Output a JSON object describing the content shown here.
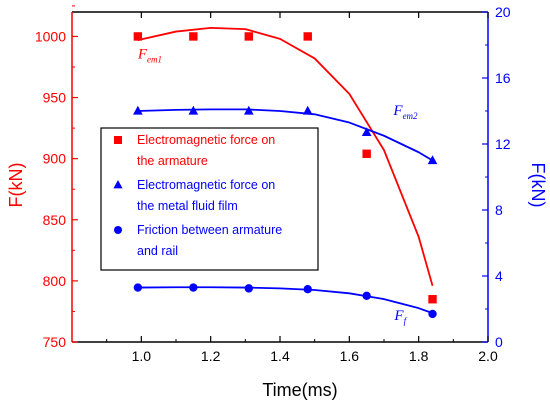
{
  "chart_data": {
    "type": "line",
    "x_axis": {
      "label": "Time(ms)",
      "range": [
        0.8,
        2.0
      ],
      "ticks": [
        "1.0",
        "1.2",
        "1.4",
        "1.6",
        "1.8",
        "2.0"
      ],
      "tick_values": [
        1.0,
        1.2,
        1.4,
        1.6,
        1.8,
        2.0
      ]
    },
    "y_left": {
      "label": "F(kN)",
      "range": [
        750,
        1020
      ],
      "ticks": [
        "750",
        "800",
        "850",
        "900",
        "950",
        "1000"
      ],
      "tick_values": [
        750,
        800,
        850,
        900,
        950,
        1000
      ],
      "color": "#ff0000"
    },
    "y_right": {
      "label": "F(kN)",
      "range": [
        0,
        20
      ],
      "ticks": [
        "0",
        "4",
        "8",
        "12",
        "16",
        "20"
      ],
      "tick_values": [
        0,
        4,
        8,
        12,
        16,
        20
      ],
      "color": "#0000ff"
    },
    "grid": false,
    "legend_position": "center-left",
    "series": [
      {
        "name": "Electromagnetic force on the armature",
        "legend_lines": [
          "Electromagnetic force on",
          "the armature"
        ],
        "axis": "left",
        "color": "#ff0000",
        "marker": "square",
        "annotation": {
          "main": "F",
          "sub": "em1"
        },
        "x": [
          0.99,
          1.15,
          1.31,
          1.48,
          1.65,
          1.84
        ],
        "y": [
          1000,
          1000,
          1000,
          1000,
          904,
          785
        ],
        "fit": [
          [
            0.99,
            997
          ],
          [
            1.1,
            1004
          ],
          [
            1.2,
            1007
          ],
          [
            1.3,
            1006
          ],
          [
            1.4,
            998
          ],
          [
            1.5,
            982
          ],
          [
            1.6,
            953
          ],
          [
            1.7,
            907
          ],
          [
            1.8,
            836
          ],
          [
            1.84,
            796
          ]
        ]
      },
      {
        "name": "Electromagnetic force on the metal fluid film",
        "legend_lines": [
          "Electromagnetic force on",
          "the metal fluid film"
        ],
        "axis": "right",
        "color": "#0000ff",
        "marker": "triangle",
        "annotation": {
          "main": "F",
          "sub": "em2"
        },
        "x": [
          0.99,
          1.15,
          1.31,
          1.48,
          1.65,
          1.84
        ],
        "y": [
          14.0,
          14.0,
          14.0,
          14.0,
          12.7,
          11.0
        ],
        "fit": [
          [
            0.99,
            14.0
          ],
          [
            1.1,
            14.07
          ],
          [
            1.2,
            14.1
          ],
          [
            1.3,
            14.1
          ],
          [
            1.4,
            14.0
          ],
          [
            1.5,
            13.8
          ],
          [
            1.6,
            13.3
          ],
          [
            1.7,
            12.5
          ],
          [
            1.8,
            11.5
          ],
          [
            1.84,
            11.0
          ]
        ]
      },
      {
        "name": "Friction between armature and rail",
        "legend_lines": [
          "Friction between armature",
          "and rail"
        ],
        "axis": "right",
        "color": "#0000ff",
        "marker": "circle",
        "annotation": {
          "main": "F",
          "sub": "f"
        },
        "x": [
          0.99,
          1.15,
          1.31,
          1.48,
          1.65,
          1.84
        ],
        "y": [
          3.3,
          3.3,
          3.25,
          3.2,
          2.8,
          1.7
        ],
        "fit": [
          [
            0.99,
            3.3
          ],
          [
            1.1,
            3.32
          ],
          [
            1.2,
            3.32
          ],
          [
            1.3,
            3.3
          ],
          [
            1.4,
            3.25
          ],
          [
            1.5,
            3.15
          ],
          [
            1.6,
            2.95
          ],
          [
            1.7,
            2.6
          ],
          [
            1.8,
            2.05
          ],
          [
            1.84,
            1.75
          ]
        ]
      }
    ]
  }
}
